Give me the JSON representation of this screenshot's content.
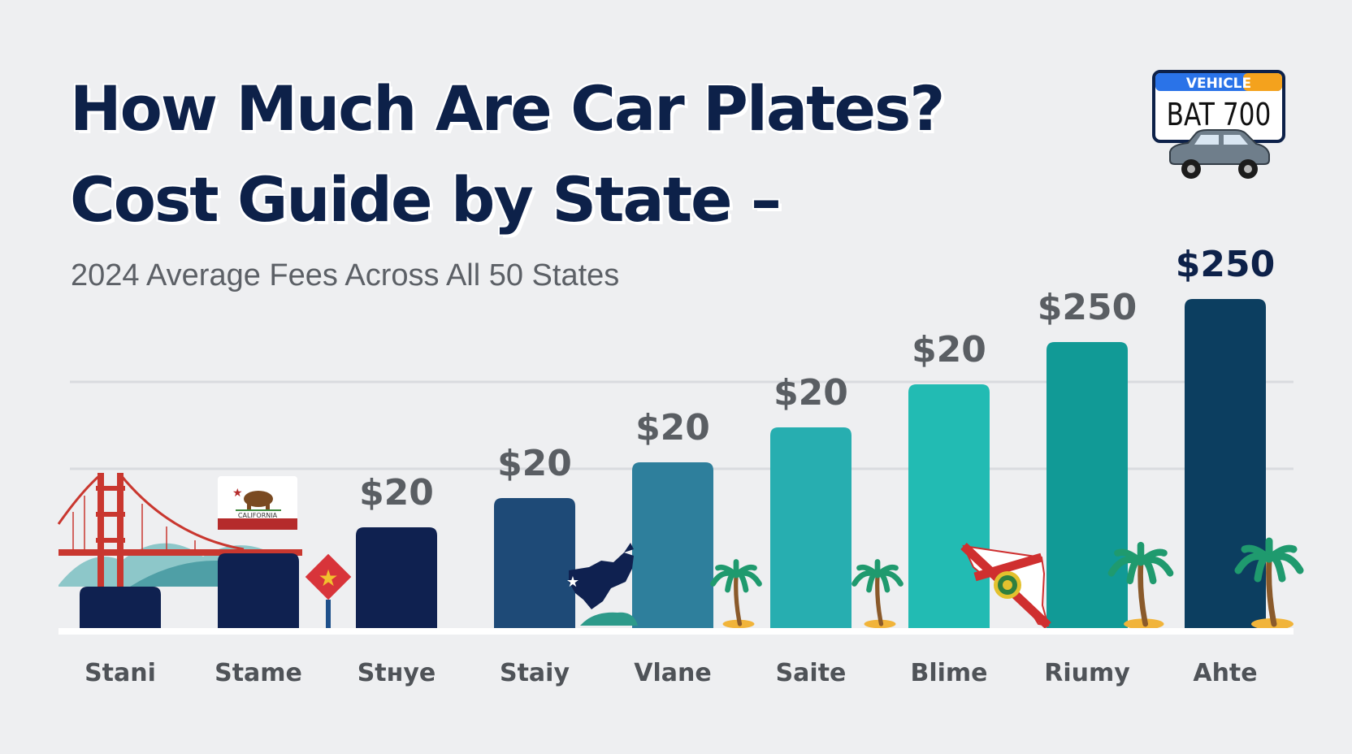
{
  "title": {
    "line1": "How Much Are Car Plates?",
    "line2": "Cost Guide by State –"
  },
  "subtitle": "2024 Average Fees Across All 50 States",
  "plate": {
    "header": "VEHICLE",
    "number": "BAT 700"
  },
  "state_flag_text": "CALIFORNIA",
  "colors": {
    "title": "#0d2149",
    "bars": [
      "#0f2150",
      "#0f2150",
      "#0f2150",
      "#1e4a77",
      "#2e7f9c",
      "#27aeb0",
      "#22bbb3",
      "#119a96",
      "#0c3e60"
    ]
  },
  "chart_data": {
    "type": "bar",
    "categories": [
      "Stani",
      "Stame",
      "Stнye",
      "Staiy",
      "Vlane",
      "Saite",
      "Blime",
      "Riumy",
      "Ahte"
    ],
    "values": [
      null,
      null,
      20,
      20,
      20,
      20,
      20,
      250,
      250
    ],
    "data_labels": [
      "",
      "",
      "$20",
      "$20",
      "$20",
      "$20",
      "$20",
      "$250",
      "$250"
    ],
    "title": "How Much Are Car Plates? Cost Guide by State –",
    "subtitle": "2024 Average Fees Across All 50 States",
    "xlabel": "",
    "ylabel": "",
    "grid": true,
    "legend": "none"
  }
}
